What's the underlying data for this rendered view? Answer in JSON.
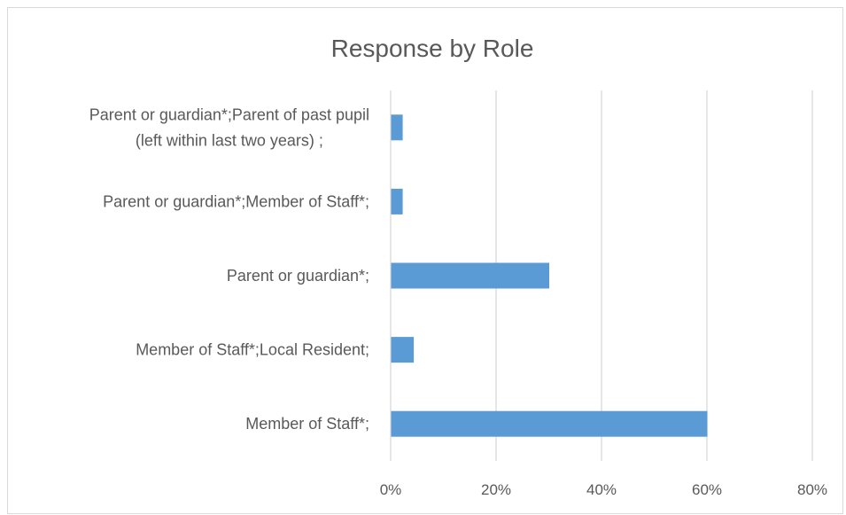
{
  "chart_data": {
    "type": "bar",
    "orientation": "horizontal",
    "title": "Response by Role",
    "xlabel": "",
    "ylabel": "",
    "categories": [
      [
        "Parent or guardian*;Parent of past pupil",
        "(left within last two years) ;"
      ],
      [
        "Parent or guardian*;Member of Staff*;"
      ],
      [
        "Parent or guardian*;"
      ],
      [
        "Member of Staff*;Local Resident;"
      ],
      [
        "Member of Staff*;"
      ]
    ],
    "values": [
      0.022,
      0.022,
      0.3,
      0.043,
      0.6
    ],
    "xlim": [
      0,
      0.8
    ],
    "xticks": [
      0,
      0.2,
      0.4,
      0.6,
      0.8
    ],
    "xtick_labels": [
      "0%",
      "20%",
      "40%",
      "60%",
      "80%"
    ],
    "grid": true,
    "legend": "none",
    "bar_color": "#5b9bd5"
  }
}
